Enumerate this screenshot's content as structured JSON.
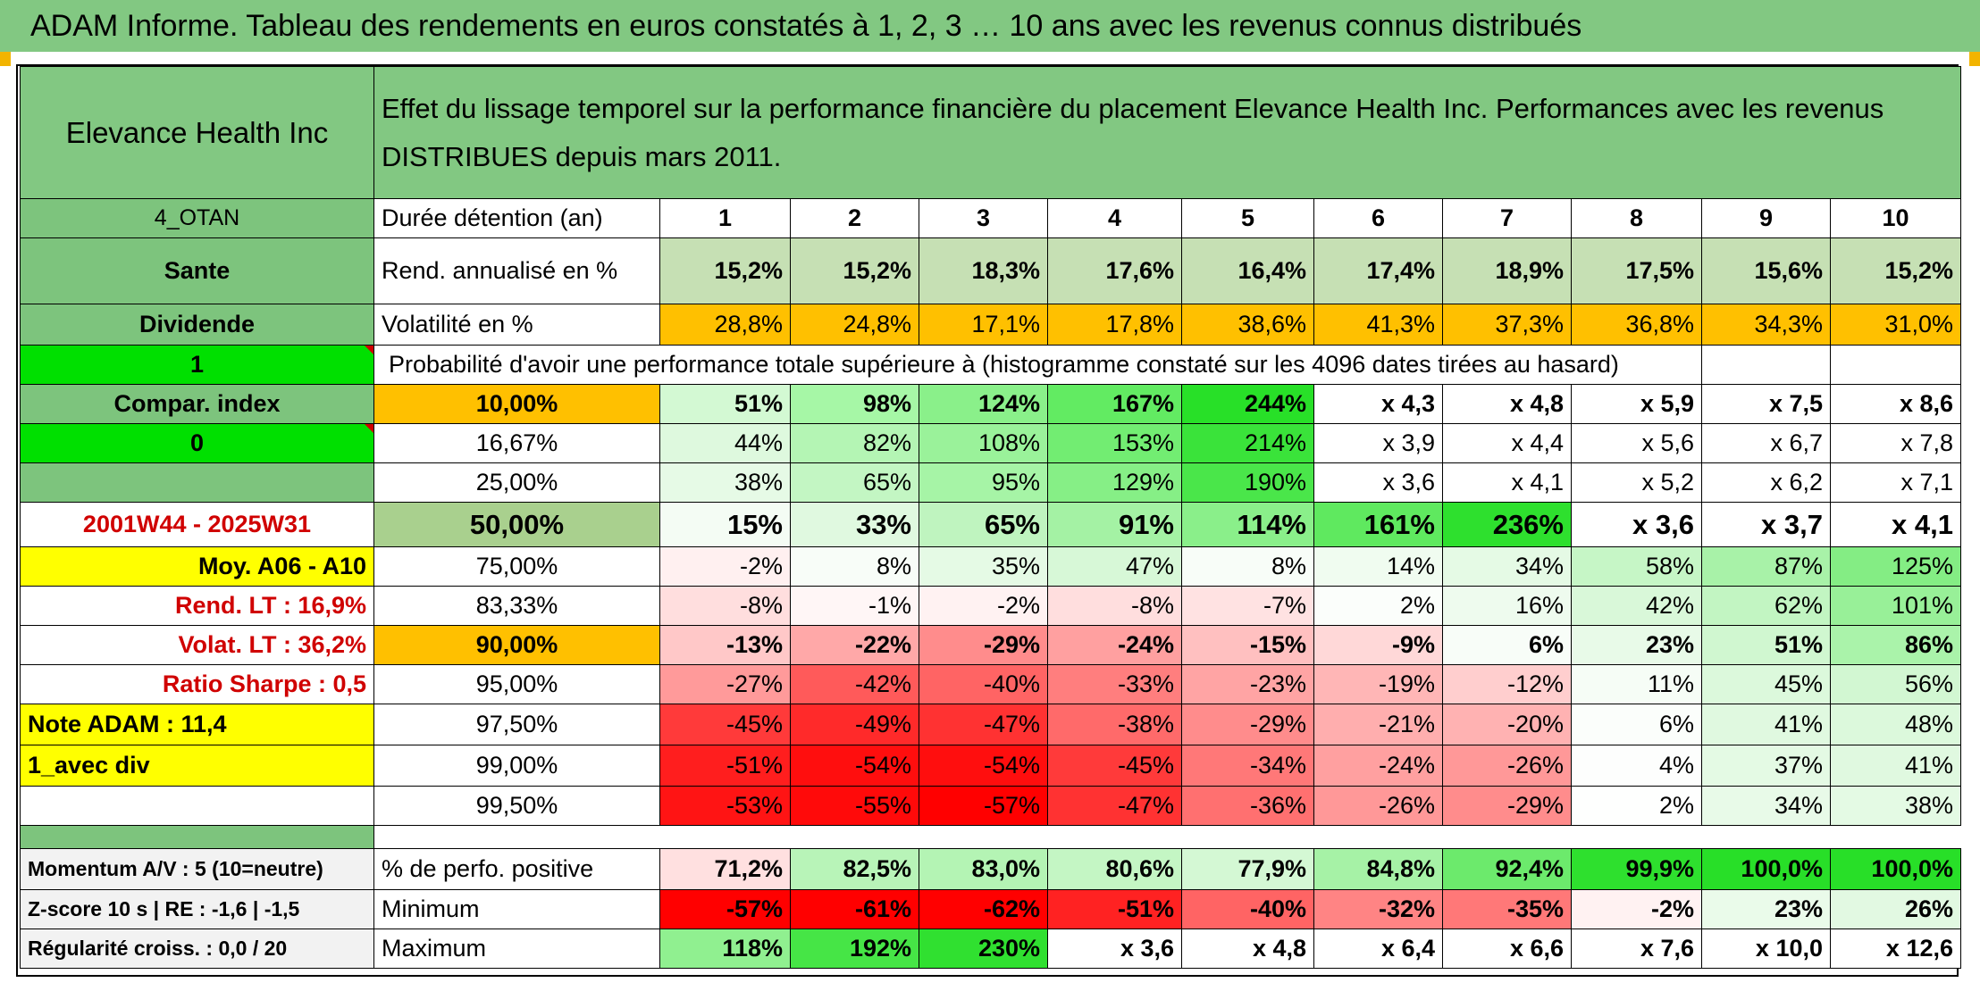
{
  "title": "ADAM Informe. Tableau des rendements en euros constatés à 1, 2, 3 … 10 ans avec les revenus connus distribués",
  "header": {
    "asset_name": "Elevance Health Inc",
    "description": "Effet du lissage temporel sur la performance financière du placement Elevance Health Inc. Performances avec les revenus DISTRIBUES depuis mars 2011."
  },
  "left": {
    "portfolio": "4_OTAN",
    "sector": "Sante",
    "income_type": "Dividende",
    "flag_1": "1",
    "compar_index": "Compar. index",
    "flag_0": "0",
    "blank": "",
    "period": "2001W44 - 2025W31",
    "avg_range": "Moy. A06 - A10",
    "rend_lt": "Rend. LT :    16,9%",
    "volat_lt": "Volat. LT :    36,2%",
    "sharpe": "Ratio Sharpe :    0,5",
    "note": "Note ADAM : 11,4",
    "variant": "1_avec div",
    "blank2": "",
    "blank3": "",
    "momentum": "Momentum A/V : 5 (10=neutre)",
    "zscore": "Z-score 10 s | RE : -1,6 | -1,5",
    "regularite": "Régularité croiss. : 0,0 / 20"
  },
  "duration": {
    "label": "Durée détention (an)",
    "years": [
      "1",
      "2",
      "3",
      "4",
      "5",
      "6",
      "7",
      "8",
      "9",
      "10"
    ]
  },
  "annualized": {
    "label": "Rend. annualisé en %",
    "values": [
      "15,2%",
      "15,2%",
      "18,3%",
      "17,6%",
      "16,4%",
      "17,4%",
      "18,9%",
      "17,5%",
      "15,6%",
      "15,2%"
    ],
    "color": "#c6e0b4"
  },
  "volatility": {
    "label": "Volatilité en %",
    "values": [
      "28,8%",
      "24,8%",
      "17,1%",
      "17,8%",
      "38,6%",
      "41,3%",
      "37,3%",
      "36,8%",
      "34,3%",
      "31,0%"
    ],
    "color": "#ffc000"
  },
  "probability_caption": "Probabilité d'avoir une performance totale supérieure à (histogramme constaté sur les 4096 dates tirées au hasard)",
  "probability_rows": [
    {
      "pct": "10,00%",
      "values": [
        "51%",
        "98%",
        "124%",
        "167%",
        "244%",
        "x 4,3",
        "x 4,8",
        "x 5,9",
        "x 7,5",
        "x 8,6"
      ],
      "colors": [
        "#d3f9d3",
        "#a6f7a6",
        "#8af08a",
        "#62eb62",
        "#28e028",
        "#fff",
        "#fff",
        "#fff",
        "#fff",
        "#fff"
      ],
      "style": "b",
      "pct_bg": "#ffc000"
    },
    {
      "pct": "16,67%",
      "values": [
        "44%",
        "82%",
        "108%",
        "153%",
        "214%",
        "x 3,9",
        "x 4,4",
        "x 5,6",
        "x 6,7",
        "x 7,8"
      ],
      "colors": [
        "#def9de",
        "#b4f5b4",
        "#9af29a",
        "#72ed72",
        "#3ae33a",
        "#fff",
        "#fff",
        "#fff",
        "#fff",
        "#fff"
      ],
      "style": "",
      "pct_bg": "#fff"
    },
    {
      "pct": "25,00%",
      "values": [
        "38%",
        "65%",
        "95%",
        "129%",
        "190%",
        "x 3,6",
        "x 4,1",
        "x 5,2",
        "x 6,2",
        "x 7,1"
      ],
      "colors": [
        "#e6fae6",
        "#c3f6c3",
        "#a6f4a6",
        "#86ef86",
        "#4ae64a",
        "#fff",
        "#fff",
        "#fff",
        "#fff",
        "#fff"
      ],
      "style": "",
      "pct_bg": "#fff"
    },
    {
      "pct": "50,00%",
      "values": [
        "15%",
        "33%",
        "65%",
        "91%",
        "114%",
        "161%",
        "236%",
        "x 3,6",
        "x 3,7",
        "x 4,1"
      ],
      "colors": [
        "#f4fcf4",
        "#e0f9e0",
        "#bff4bf",
        "#a4f2a4",
        "#8aef8a",
        "#5fe95f",
        "#2ee02e",
        "#fff",
        "#fff",
        "#fff"
      ],
      "style": "big",
      "pct_bg": "#a9d08e"
    },
    {
      "pct": "75,00%",
      "values": [
        "-2%",
        "8%",
        "35%",
        "47%",
        "8%",
        "14%",
        "34%",
        "58%",
        "87%",
        "125%"
      ],
      "colors": [
        "#fff0f0",
        "#f8fdf8",
        "#e5fae5",
        "#d7f8d7",
        "#f8fdf8",
        "#f0fcf0",
        "#e5fae5",
        "#c6f6c6",
        "#a8f2a8",
        "#84ed84"
      ],
      "style": "",
      "pct_bg": "#fff"
    },
    {
      "pct": "83,33%",
      "values": [
        "-8%",
        "-1%",
        "-2%",
        "-8%",
        "-7%",
        "2%",
        "16%",
        "42%",
        "62%",
        "101%"
      ],
      "colors": [
        "#ffdede",
        "#fff6f6",
        "#fff2f2",
        "#ffdede",
        "#ffe2e2",
        "#fbfefb",
        "#eefbee",
        "#d9f8d9",
        "#c2f5c2",
        "#98f098"
      ],
      "style": "",
      "pct_bg": "#fff"
    },
    {
      "pct": "90,00%",
      "values": [
        "-13%",
        "-22%",
        "-29%",
        "-24%",
        "-15%",
        "-9%",
        "6%",
        "23%",
        "51%",
        "86%"
      ],
      "colors": [
        "#ffc8c8",
        "#ffa8a8",
        "#ff8c8c",
        "#ffa0a0",
        "#ffc0c0",
        "#ffd8d8",
        "#f8fdf8",
        "#e8fae8",
        "#d0f7d0",
        "#aaf3aa"
      ],
      "style": "b",
      "pct_bg": "#ffc000"
    },
    {
      "pct": "95,00%",
      "values": [
        "-27%",
        "-42%",
        "-40%",
        "-33%",
        "-23%",
        "-19%",
        "-12%",
        "11%",
        "45%",
        "56%"
      ],
      "colors": [
        "#ff9a9a",
        "#ff5a5a",
        "#ff6464",
        "#ff7e7e",
        "#ffa4a4",
        "#ffb6b6",
        "#ffcece",
        "#f6fdf6",
        "#dcf9dc",
        "#d2f7d2"
      ],
      "style": "",
      "pct_bg": "#fff"
    },
    {
      "pct": "97,50%",
      "values": [
        "-45%",
        "-49%",
        "-47%",
        "-38%",
        "-29%",
        "-21%",
        "-20%",
        "6%",
        "41%",
        "48%"
      ],
      "colors": [
        "#ff3a3a",
        "#ff2a2a",
        "#ff3232",
        "#ff6a6a",
        "#ff8c8c",
        "#ffaeae",
        "#ffb2b2",
        "#fbfefb",
        "#e0f9e0",
        "#dcf9dc"
      ],
      "style": "",
      "pct_bg": "#fff"
    },
    {
      "pct": "99,00%",
      "values": [
        "-51%",
        "-54%",
        "-54%",
        "-45%",
        "-34%",
        "-24%",
        "-26%",
        "4%",
        "37%",
        "41%"
      ],
      "colors": [
        "#ff1e1e",
        "#ff0e0e",
        "#ff0e0e",
        "#ff3a3a",
        "#ff7878",
        "#ffa0a0",
        "#ff9898",
        "#fdfefd",
        "#e4fae4",
        "#e0f9e0"
      ],
      "style": "",
      "pct_bg": "#fff"
    },
    {
      "pct": "99,50%",
      "values": [
        "-53%",
        "-55%",
        "-57%",
        "-47%",
        "-36%",
        "-26%",
        "-29%",
        "2%",
        "34%",
        "38%"
      ],
      "colors": [
        "#ff1414",
        "#ff0a0a",
        "#ff0000",
        "#ff3232",
        "#ff7070",
        "#ff9898",
        "#ff8c8c",
        "#fefffe",
        "#e8fae8",
        "#e4fae4"
      ],
      "style": "",
      "pct_bg": "#fff"
    }
  ],
  "positive": {
    "label": "% de perfo. positive",
    "values": [
      "71,2%",
      "82,5%",
      "83,0%",
      "80,6%",
      "77,9%",
      "84,8%",
      "92,4%",
      "99,9%",
      "100,0%",
      "100,0%"
    ],
    "colors": [
      "#ffe0e0",
      "#b8f4b8",
      "#b4f4b4",
      "#c4f6c4",
      "#d4f8d4",
      "#a6f2a6",
      "#6cea6c",
      "#2ee02e",
      "#28df28",
      "#28df28"
    ]
  },
  "minimum": {
    "label": "Minimum",
    "values": [
      "-57%",
      "-61%",
      "-62%",
      "-51%",
      "-40%",
      "-32%",
      "-35%",
      "-2%",
      "23%",
      "26%"
    ],
    "colors": [
      "#ff0000",
      "#ff0000",
      "#ff0000",
      "#ff2222",
      "#ff6464",
      "#ff8484",
      "#ff7878",
      "#fff2f2",
      "#eafbea",
      "#e2f9e2"
    ]
  },
  "maximum": {
    "label": "Maximum",
    "values": [
      "118%",
      "192%",
      "230%",
      "x 3,6",
      "x 4,8",
      "x 6,4",
      "x 6,6",
      "x 7,6",
      "x 10,0",
      "x 12,6"
    ],
    "colors": [
      "#90f090",
      "#46e546",
      "#30e030",
      "#fff",
      "#fff",
      "#fff",
      "#fff",
      "#fff",
      "#fff",
      "#fff"
    ]
  },
  "colors": {
    "green_header": "#82c882",
    "left_green": "#7dc47d",
    "bright_green": "#00e000",
    "yellow": "#ffff00",
    "orange": "#ffc000",
    "light_gray": "#f2f2f2"
  }
}
